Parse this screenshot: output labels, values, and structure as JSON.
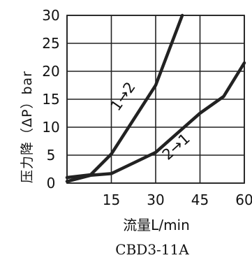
{
  "chart_data": {
    "type": "line",
    "title": "",
    "xlabel": "流量L/min",
    "ylabel": "压力降（ΔP）bar",
    "xlim": [
      0,
      60
    ],
    "ylim": [
      0,
      30
    ],
    "x_ticks": [
      "15",
      "30",
      "45",
      "60"
    ],
    "y_ticks": [
      "0",
      "5",
      "10",
      "15",
      "20",
      "25",
      "30"
    ],
    "grid": true,
    "series": [
      {
        "name": "1→2",
        "x": [
          0,
          8,
          15,
          30,
          39
        ],
        "y": [
          1,
          1.5,
          5.2,
          17.5,
          30
        ]
      },
      {
        "name": "2→1",
        "x": [
          0,
          8,
          15,
          30,
          45,
          53,
          60
        ],
        "y": [
          0.3,
          1.4,
          1.7,
          5.5,
          12.5,
          15.5,
          21.5
        ]
      }
    ],
    "model": "CBD3-11A"
  }
}
